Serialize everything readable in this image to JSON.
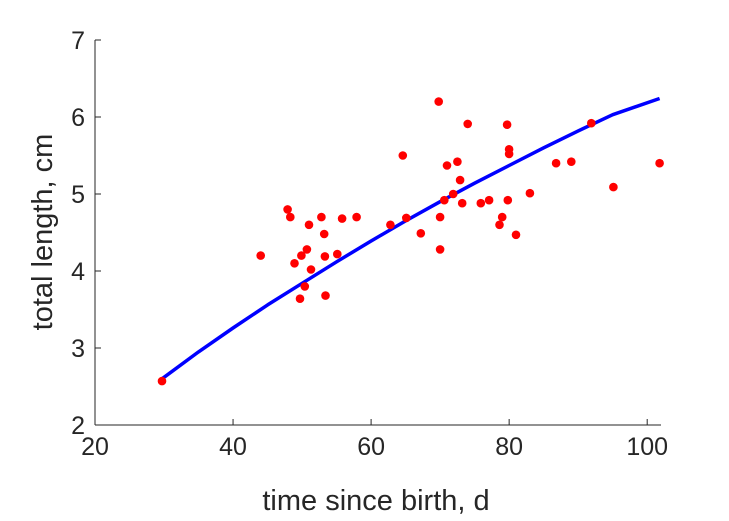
{
  "chart_data": {
    "type": "scatter",
    "xlabel": "time since birth, d",
    "ylabel": "total length, cm",
    "xlim": [
      20,
      102
    ],
    "ylim": [
      2,
      7
    ],
    "xticks": [
      "20",
      "40",
      "60",
      "80",
      "100"
    ],
    "yticks": [
      "2",
      "3",
      "4",
      "5",
      "6",
      "7"
    ],
    "grid": false,
    "box": false,
    "colors": {
      "points": "#ff0000",
      "curve": "#0000ff",
      "axis": "#262626"
    },
    "points": [
      [
        29.7,
        2.57
      ],
      [
        44.0,
        4.2
      ],
      [
        47.9,
        4.8
      ],
      [
        48.3,
        4.7
      ],
      [
        48.9,
        4.1
      ],
      [
        49.7,
        3.64
      ],
      [
        49.9,
        4.2
      ],
      [
        50.4,
        3.8
      ],
      [
        50.7,
        4.28
      ],
      [
        51.0,
        4.6
      ],
      [
        51.3,
        4.02
      ],
      [
        52.8,
        4.7
      ],
      [
        53.2,
        4.48
      ],
      [
        53.3,
        4.19
      ],
      [
        53.4,
        3.68
      ],
      [
        55.1,
        4.22
      ],
      [
        55.8,
        4.68
      ],
      [
        57.9,
        4.7
      ],
      [
        62.8,
        4.6
      ],
      [
        64.6,
        5.5
      ],
      [
        65.1,
        4.69
      ],
      [
        67.2,
        4.49
      ],
      [
        69.8,
        6.2
      ],
      [
        70.0,
        4.7
      ],
      [
        70.0,
        4.28
      ],
      [
        70.6,
        4.92
      ],
      [
        71.0,
        5.37
      ],
      [
        71.9,
        5.0
      ],
      [
        72.5,
        5.42
      ],
      [
        72.9,
        5.18
      ],
      [
        73.2,
        4.88
      ],
      [
        74.0,
        5.91
      ],
      [
        75.9,
        4.88
      ],
      [
        77.1,
        4.92
      ],
      [
        78.6,
        4.6
      ],
      [
        79.0,
        4.7
      ],
      [
        79.7,
        5.9
      ],
      [
        79.8,
        4.92
      ],
      [
        80.0,
        5.58
      ],
      [
        80.0,
        5.52
      ],
      [
        81.0,
        4.47
      ],
      [
        83.0,
        5.01
      ],
      [
        86.8,
        5.4
      ],
      [
        89.0,
        5.42
      ],
      [
        91.9,
        5.92
      ],
      [
        95.1,
        5.09
      ],
      [
        101.8,
        5.4
      ]
    ],
    "curve": {
      "x": [
        29.7,
        35,
        40,
        45,
        50,
        55,
        60,
        65,
        70,
        75,
        80,
        85,
        90,
        95,
        101.8
      ],
      "y": [
        2.6,
        2.95,
        3.26,
        3.56,
        3.84,
        4.12,
        4.39,
        4.65,
        4.9,
        5.14,
        5.37,
        5.6,
        5.82,
        6.03,
        6.24
      ]
    }
  }
}
